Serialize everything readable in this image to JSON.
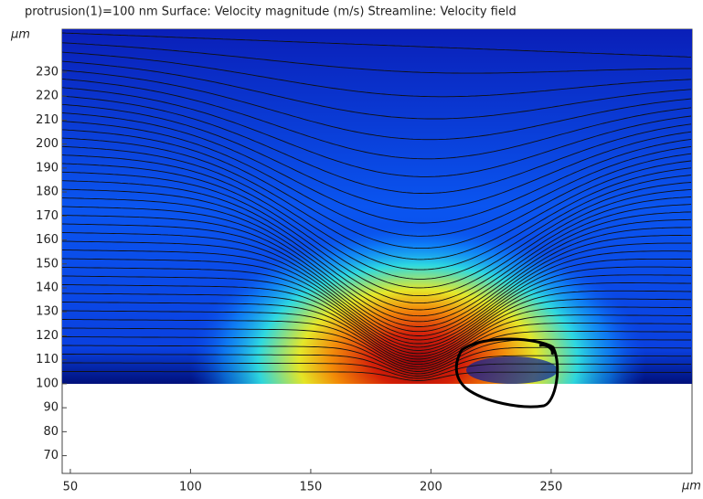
{
  "chart_data": {
    "type": "surface",
    "title": "protrusion(1)=100 nm   Surface: Velocity magnitude (m/s)   Streamline: Velocity field",
    "x_label": "µm",
    "y_label": "µm",
    "xlim": [
      46.6,
      308.6
    ],
    "ylim": [
      62.6,
      247.9
    ],
    "xticks": [
      50,
      100,
      150,
      200,
      250
    ],
    "yticks": [
      70,
      80,
      90,
      100,
      110,
      120,
      130,
      140,
      150,
      160,
      170,
      180,
      190,
      200,
      210,
      220,
      230
    ]
  }
}
